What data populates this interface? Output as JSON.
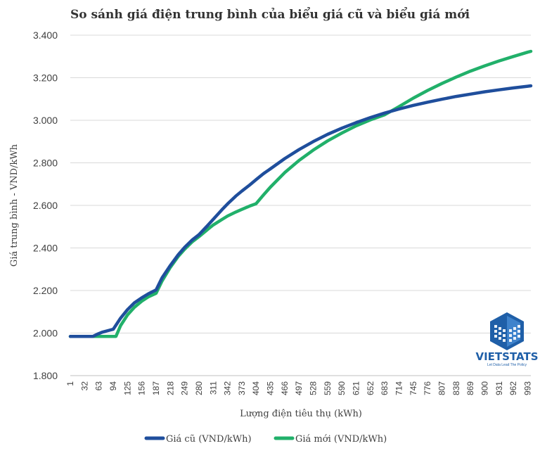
{
  "chart_data": {
    "type": "line",
    "title": "So sánh giá điện trung bình của biểu giá cũ và biểu giá mới",
    "xlabel": "Lượng điện tiêu thụ (kWh)",
    "ylabel": "Giá trung bình - VND/kWh",
    "ylim": [
      1800,
      3400
    ],
    "yticks": [
      1800,
      2000,
      2200,
      2400,
      2600,
      2800,
      3000,
      3200,
      3400
    ],
    "ytick_labels": [
      "1.800",
      "2.000",
      "2.200",
      "2.400",
      "2.600",
      "2.800",
      "3.000",
      "3.200",
      "3.400"
    ],
    "xlim": [
      1,
      1000
    ],
    "xtick_labels": [
      "1",
      "32",
      "63",
      "94",
      "125",
      "156",
      "187",
      "218",
      "249",
      "280",
      "311",
      "342",
      "373",
      "404",
      "435",
      "466",
      "497",
      "528",
      "559",
      "590",
      "621",
      "652",
      "683",
      "714",
      "745",
      "776",
      "807",
      "838",
      "869",
      "900",
      "931",
      "962",
      "993"
    ],
    "grid": "horizontal",
    "legend": "bottom",
    "series": [
      {
        "name": "Giá cũ (VND/kWh)",
        "color": "#1f4e9c",
        "x": [
          1,
          50,
          60,
          70,
          80,
          94,
          100,
          110,
          125,
          140,
          156,
          170,
          187,
          200,
          218,
          235,
          249,
          265,
          280,
          300,
          311,
          330,
          342,
          360,
          373,
          390,
          404,
          420,
          435,
          466,
          497,
          528,
          559,
          590,
          621,
          652,
          683,
          714,
          745,
          776,
          807,
          838,
          869,
          900,
          931,
          962,
          993,
          1000
        ],
        "y": [
          1984,
          1984,
          1995,
          2004,
          2010,
          2018,
          2037,
          2070,
          2110,
          2142,
          2166,
          2184,
          2203,
          2260,
          2318,
          2368,
          2403,
          2437,
          2462,
          2508,
          2535,
          2580,
          2607,
          2644,
          2667,
          2696,
          2721,
          2749,
          2772,
          2820,
          2862,
          2900,
          2934,
          2963,
          2989,
          3013,
          3034,
          3053,
          3070,
          3085,
          3099,
          3112,
          3123,
          3134,
          3143,
          3152,
          3160,
          3162
        ]
      },
      {
        "name": "Giá mới (VND/kWh)",
        "color": "#21b06a",
        "x": [
          1,
          100,
          110,
          125,
          140,
          156,
          170,
          187,
          200,
          218,
          235,
          249,
          265,
          280,
          300,
          311,
          330,
          342,
          360,
          373,
          390,
          404,
          420,
          435,
          466,
          497,
          528,
          559,
          590,
          621,
          652,
          683,
          700,
          714,
          745,
          776,
          807,
          838,
          869,
          900,
          931,
          962,
          993,
          1000
        ],
        "y": [
          1984,
          1984,
          2035,
          2085,
          2121,
          2150,
          2170,
          2187,
          2245,
          2309,
          2360,
          2394,
          2428,
          2453,
          2489,
          2508,
          2534,
          2550,
          2569,
          2581,
          2597,
          2608,
          2649,
          2686,
          2754,
          2811,
          2860,
          2903,
          2940,
          2974,
          3002,
          3026,
          3047,
          3064,
          3104,
          3140,
          3173,
          3203,
          3231,
          3256,
          3279,
          3300,
          3320,
          3324
        ]
      }
    ]
  },
  "brand": {
    "name": "VIETSTATS",
    "tagline": "Let Data Lead The Policy",
    "color": "#1f5fa8"
  }
}
